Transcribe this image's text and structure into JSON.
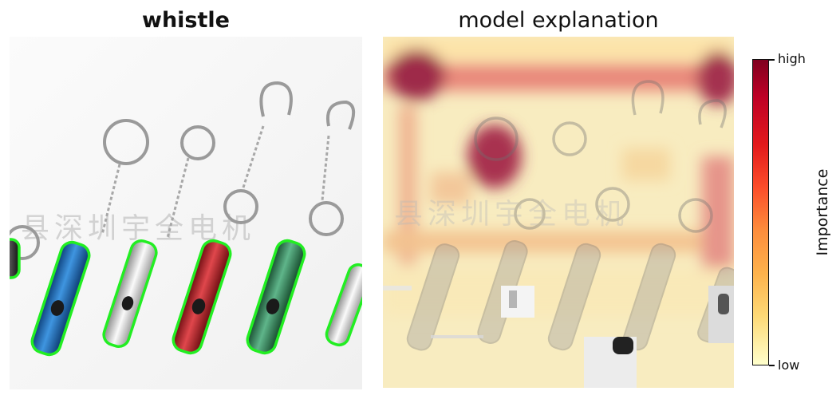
{
  "left_title": "whistle",
  "right_title": "model explanation",
  "watermark": "县深圳宇全电机",
  "colorbar": {
    "label": "Importance",
    "high_label": "high",
    "low_label": "low",
    "colormap": [
      "#ffffcc",
      "#fed976",
      "#feb24c",
      "#fd8d3c",
      "#fc4e2a",
      "#e31a1c",
      "#bd0026",
      "#80001f"
    ]
  },
  "segment_outline_color": "#22ee22",
  "whistle_colors": [
    "#2a2a2a",
    "#1c6fc4",
    "#d8d8d8",
    "#c0282e",
    "#2f8f5a",
    "#e0e0e0"
  ]
}
